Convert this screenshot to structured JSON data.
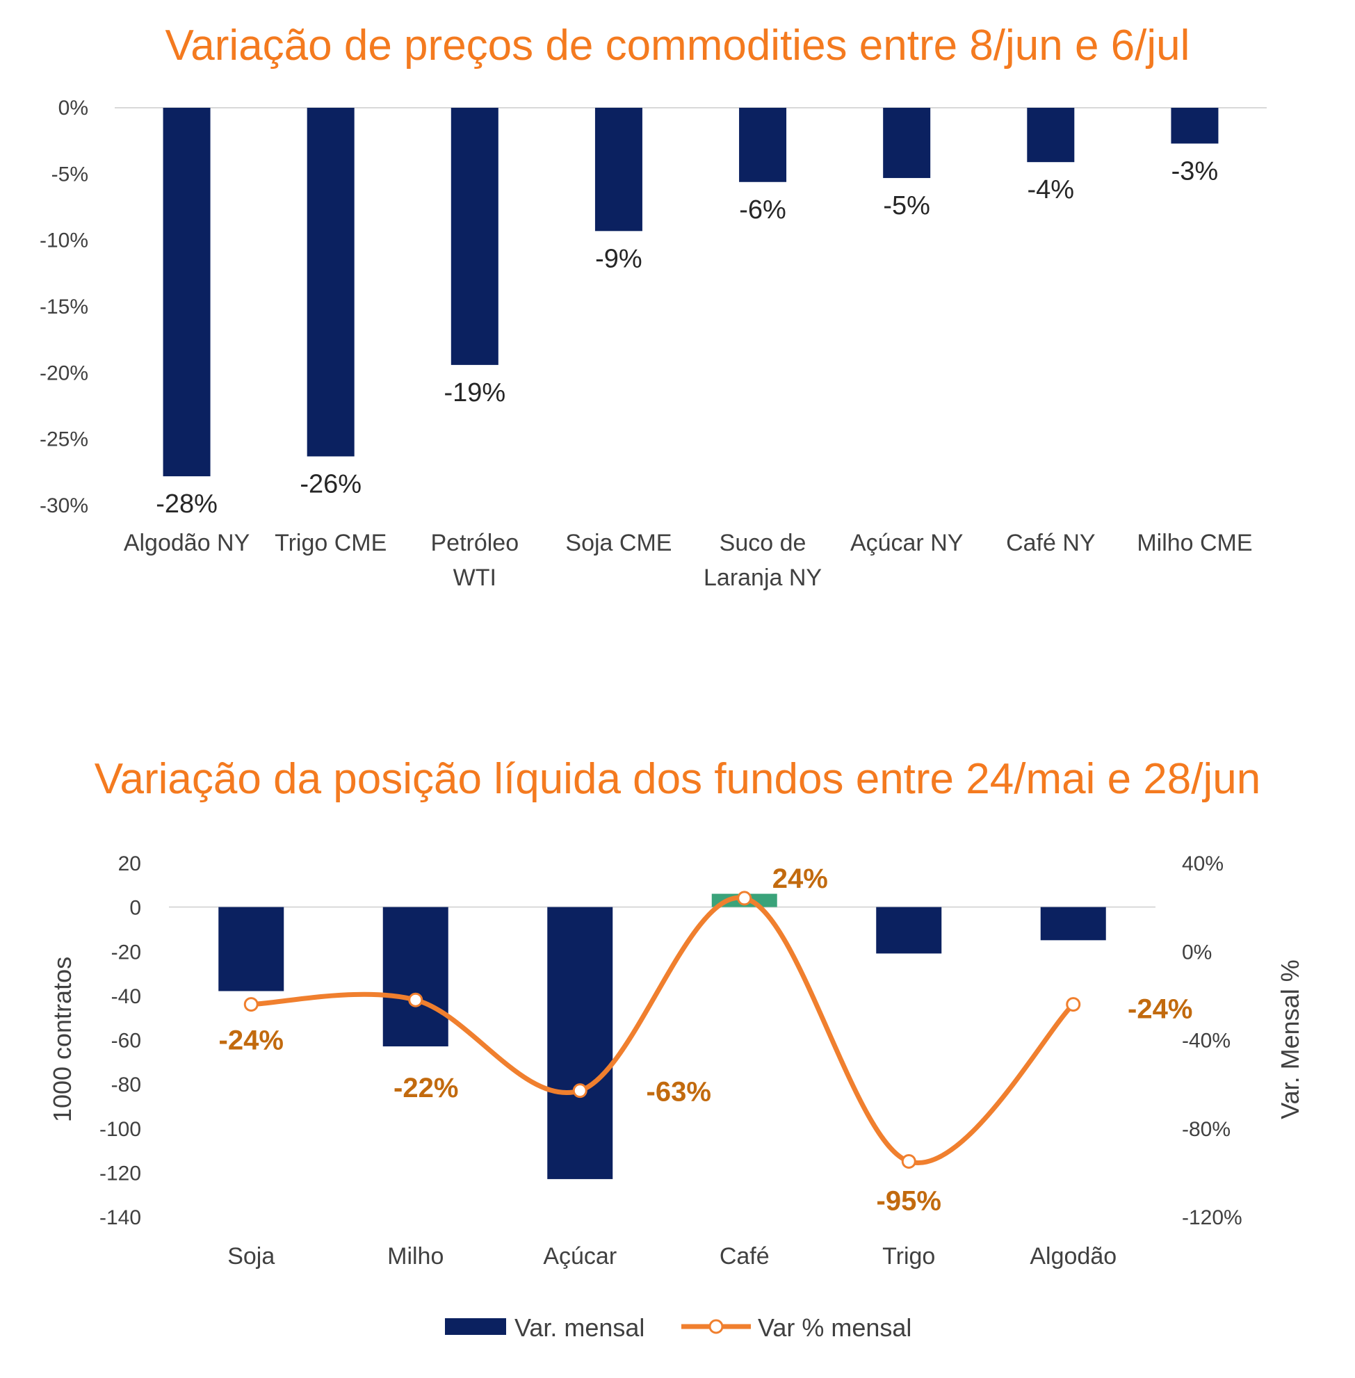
{
  "chart_data": [
    {
      "type": "bar",
      "title": "Variação de preços de commodities entre 8/jun e 6/jul",
      "categories": [
        [
          "Algodão NY"
        ],
        [
          "Trigo CME"
        ],
        [
          "Petróleo",
          "WTI"
        ],
        [
          "Soja CME"
        ],
        [
          "Suco de",
          "Laranja NY"
        ],
        [
          "Açúcar NY"
        ],
        [
          "Café NY"
        ],
        [
          "Milho CME"
        ]
      ],
      "values": [
        -27.8,
        -26.3,
        -19.4,
        -9.3,
        -5.6,
        -5.3,
        -4.1,
        -2.7
      ],
      "data_labels": [
        "-28%",
        "-26%",
        "-19%",
        "-9%",
        "-6%",
        "-5%",
        "-4%",
        "-3%"
      ],
      "ylim": [
        -30,
        0
      ],
      "yticks": [
        0,
        -5,
        -10,
        -15,
        -20,
        -25,
        -30
      ],
      "ytick_labels": [
        "0%",
        "-5%",
        "-10%",
        "-15%",
        "-20%",
        "-25%",
        "-30%"
      ],
      "bar_color": "#0b2160",
      "grid": false
    },
    {
      "type": "bar+line",
      "title": "Variação da posição líquida dos fundos entre 24/mai e 28/jun",
      "categories": [
        "Soja",
        "Milho",
        "Açúcar",
        "Café",
        "Trigo",
        "Algodão"
      ],
      "series": [
        {
          "name": "Var. mensal",
          "type": "bar",
          "axis": "left",
          "values": [
            -38,
            -63,
            -123,
            6,
            -21,
            -15
          ],
          "color": "#0b2160",
          "positive_color": "#3aa37a"
        },
        {
          "name": "Var % mensal",
          "type": "line",
          "axis": "right",
          "values": [
            -24,
            -22,
            -63,
            24,
            -95,
            -24
          ],
          "data_labels": [
            "-24%",
            "-22%",
            "-63%",
            "24%",
            "-95%",
            "-24%"
          ],
          "color": "#f07f2e"
        }
      ],
      "ylabel": "1000 contratos",
      "ylim": [
        -140,
        20
      ],
      "yticks": [
        20,
        0,
        -20,
        -40,
        -60,
        -80,
        -100,
        -120,
        -140
      ],
      "y2label": "Var. Mensal %",
      "y2lim": [
        -120,
        40
      ],
      "y2ticks": [
        40,
        0,
        -40,
        -80,
        -120
      ],
      "y2tick_labels": [
        "40%",
        "0%",
        "-40%",
        "-80%",
        "-120%"
      ],
      "legend": "bottom",
      "grid": false
    }
  ]
}
